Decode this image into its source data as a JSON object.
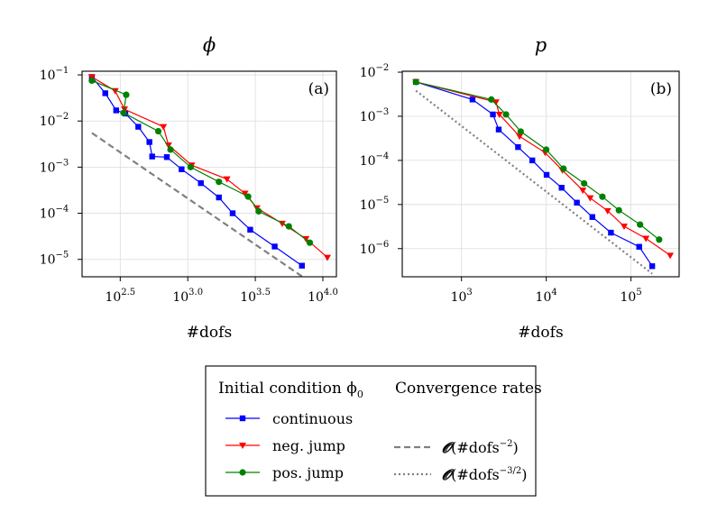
{
  "chart_data": [
    {
      "type": "line",
      "id": "phi",
      "title": "ϕ",
      "panel_label": "(a)",
      "xlabel": "#dofs",
      "ylabel": "",
      "xscale": "log",
      "yscale": "log",
      "xlim": [
        165,
        12600
      ],
      "ylim": [
        4.2e-06,
        0.12
      ],
      "xticks": [
        {
          "v": 316.2,
          "b": "10",
          "e": "2.5"
        },
        {
          "v": 1000,
          "b": "10",
          "e": "3.0"
        },
        {
          "v": 3162.3,
          "b": "10",
          "e": "3.5"
        },
        {
          "v": 10000,
          "b": "10",
          "e": "4.0"
        }
      ],
      "yticks": [
        {
          "v": 0.1,
          "b": "10",
          "e": "−1"
        },
        {
          "v": 0.01,
          "b": "10",
          "e": "−2"
        },
        {
          "v": 0.001,
          "b": "10",
          "e": "−3"
        },
        {
          "v": 0.0001,
          "b": "10",
          "e": "−4"
        },
        {
          "v": 1e-05,
          "b": "10",
          "e": "−5"
        }
      ],
      "grid": true,
      "series": [
        {
          "name": "continuous",
          "color": "#0000ff",
          "marker": "square",
          "x": [
            195,
            245,
            295,
            345,
            430,
            520,
            545,
            700,
            900,
            1250,
            1700,
            2150,
            2900,
            4400,
            7000
          ],
          "y": [
            0.09,
            0.04,
            0.017,
            0.0145,
            0.0075,
            0.0035,
            0.0017,
            0.00165,
            0.0009,
            0.00045,
            0.00022,
            0.0001,
            4.4e-05,
            1.9e-05,
            7.3e-06
          ]
        },
        {
          "name": "neg. jump",
          "color": "#ff0000",
          "marker": "triangle-down",
          "x": [
            195,
            290,
            340,
            660,
            720,
            1070,
            1950,
            2650,
            3250,
            5000,
            7500,
            10800
          ],
          "y": [
            0.09,
            0.045,
            0.018,
            0.0075,
            0.003,
            0.0011,
            0.00055,
            0.00027,
            0.00013,
            6e-05,
            2.8e-05,
            1.1e-05
          ]
        },
        {
          "name": "pos. jump",
          "color": "#008000",
          "marker": "circle",
          "x": [
            195,
            350,
            335,
            605,
            745,
            1050,
            1700,
            2800,
            3350,
            5600,
            8000
          ],
          "y": [
            0.075,
            0.037,
            0.015,
            0.006,
            0.0024,
            0.001,
            0.00048,
            0.00023,
            0.00011,
            5.2e-05,
            2.3e-05
          ]
        }
      ],
      "reference_lines": [
        {
          "name": "O(#dofs^-2)",
          "style": "dashed",
          "color": "#808080",
          "x": [
            195,
            7000
          ],
          "y": [
            0.0055,
            4.3e-06
          ]
        }
      ]
    },
    {
      "type": "line",
      "id": "p",
      "title": "p",
      "panel_label": "(b)",
      "xlabel": "#dofs",
      "ylabel": "",
      "xscale": "log",
      "yscale": "log",
      "xlim": [
        200,
        370000
      ],
      "ylim": [
        2.3e-07,
        0.0105
      ],
      "xticks": [
        {
          "v": 1000,
          "b": "10",
          "e": "3"
        },
        {
          "v": 10000,
          "b": "10",
          "e": "4"
        },
        {
          "v": 100000,
          "b": "10",
          "e": "5"
        }
      ],
      "yticks": [
        {
          "v": 0.01,
          "b": "10",
          "e": "−2"
        },
        {
          "v": 0.001,
          "b": "10",
          "e": "−3"
        },
        {
          "v": 0.0001,
          "b": "10",
          "e": "−4"
        },
        {
          "v": 1e-05,
          "b": "10",
          "e": "−5"
        },
        {
          "v": 1e-06,
          "b": "10",
          "e": "−6"
        }
      ],
      "grid": true,
      "series": [
        {
          "name": "continuous",
          "color": "#0000ff",
          "marker": "square",
          "x": [
            290,
            1350,
            2350,
            2750,
            4650,
            6850,
            10100,
            15200,
            23000,
            35000,
            58000,
            125000,
            178000
          ],
          "y": [
            0.006,
            0.0024,
            0.0011,
            0.0005,
            0.0002,
            0.0001,
            4.7e-05,
            2.4e-05,
            1.1e-05,
            5.2e-06,
            2.3e-06,
            1.1e-06,
            4e-07
          ]
        },
        {
          "name": "neg. jump",
          "color": "#ff0000",
          "marker": "triangle-down",
          "x": [
            290,
            2550,
            2800,
            4850,
            9700,
            15500,
            27000,
            33000,
            53000,
            83000,
            150000,
            290000
          ],
          "y": [
            0.006,
            0.0021,
            0.0011,
            0.00035,
            0.00015,
            6e-05,
            2.1e-05,
            1.4e-05,
            7.2e-06,
            3.2e-06,
            1.7e-06,
            7e-07
          ]
        },
        {
          "name": "pos. jump",
          "color": "#008000",
          "marker": "circle",
          "x": [
            290,
            2250,
            3350,
            5000,
            10000,
            16000,
            28000,
            46000,
            72000,
            128000,
            215000
          ],
          "y": [
            0.006,
            0.0024,
            0.0011,
            0.00045,
            0.000175,
            6.5e-05,
            3e-05,
            1.5e-05,
            7.4e-06,
            3.5e-06,
            1.6e-06
          ]
        }
      ],
      "reference_lines": [
        {
          "name": "O(#dofs^-3/2)",
          "style": "dotted",
          "color": "#808080",
          "x": [
            290,
            178000
          ],
          "y": [
            0.0038,
            2.7e-07
          ]
        }
      ]
    }
  ],
  "legend": {
    "placement": "bottom-center",
    "header_left": "Initial condition ϕ",
    "header_left_sub": "0",
    "header_right": "Convergence rates",
    "entries": [
      {
        "label": "continuous",
        "color": "#0000ff",
        "marker": "square"
      },
      {
        "label": "neg. jump",
        "color": "#ff0000",
        "marker": "triangle-down"
      },
      {
        "label": "pos. jump",
        "color": "#008000",
        "marker": "circle"
      }
    ],
    "rates": [
      {
        "label_pre": "(#dofs",
        "label_exp": "−2",
        "style": "dashed",
        "color": "#808080"
      },
      {
        "label_pre": "(#dofs",
        "label_exp": "−3/2",
        "style": "dotted",
        "color": "#808080"
      }
    ],
    "rate_symbol": "𝓞"
  }
}
